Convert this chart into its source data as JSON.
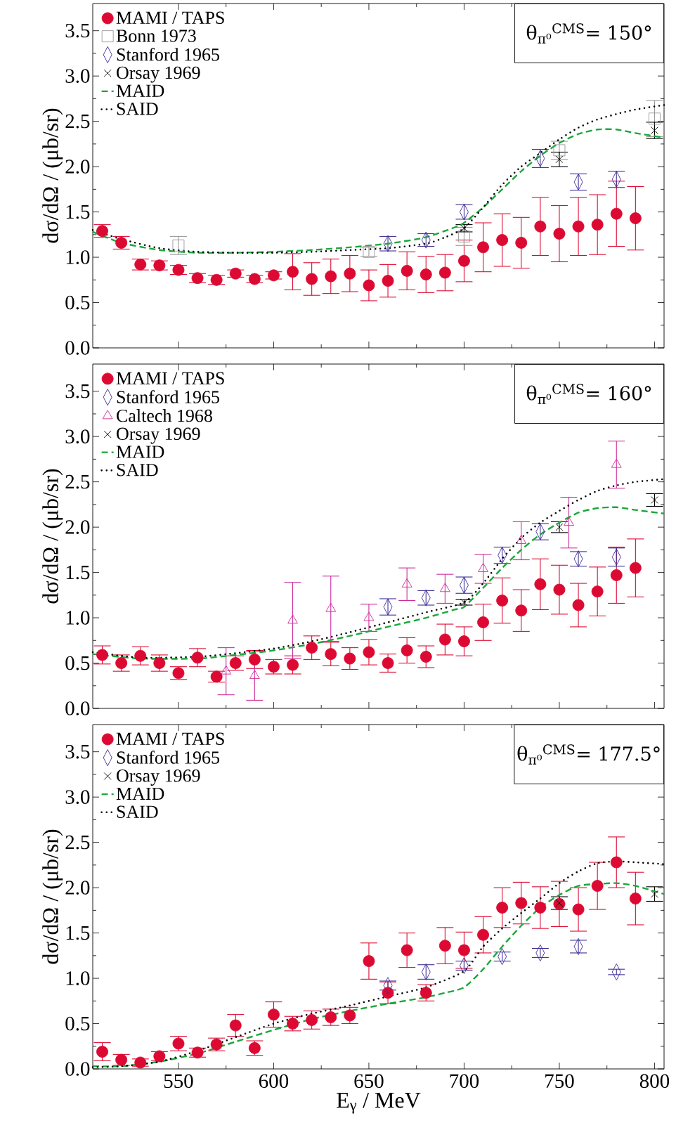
{
  "chart_data": [
    {
      "type": "scatter",
      "ylabel": "dσ/dΩ / (μb/sr)",
      "annotations": [
        "θ$_{π⁰}$$^{CMS}$= 150°"
      ],
      "xlim": [
        505,
        805
      ],
      "ylim": [
        0,
        3.8
      ],
      "xticks": [
        550,
        600,
        650,
        700,
        750,
        800
      ],
      "yticks": [
        {
          "value": 0,
          "label": "0.0"
        },
        {
          "value": 0.5,
          "label": "0.5"
        },
        {
          "value": 1,
          "label": "1.0"
        },
        {
          "value": 1.5,
          "label": "1.5"
        },
        {
          "value": 2,
          "label": "2.0"
        },
        {
          "value": 2.5,
          "label": "2.5"
        },
        {
          "value": 3,
          "label": "3.0"
        },
        {
          "value": 3.5,
          "label": "3.5"
        }
      ],
      "tick_labels": "y",
      "legend": "top left",
      "series": [
        {
          "name": "MAMI / TAPS",
          "color": "#dc0a32",
          "marker": "circle",
          "x": [
            510,
            520,
            530,
            540,
            550,
            560,
            570,
            580,
            590,
            600,
            610,
            620,
            630,
            640,
            650,
            660,
            670,
            680,
            690,
            700,
            710,
            720,
            730,
            740,
            750,
            760,
            770,
            780,
            790
          ],
          "values": [
            1.29,
            1.16,
            0.92,
            0.91,
            0.86,
            0.77,
            0.75,
            0.82,
            0.76,
            0.8,
            0.84,
            0.76,
            0.79,
            0.82,
            0.69,
            0.74,
            0.85,
            0.81,
            0.83,
            0.96,
            1.11,
            1.19,
            1.16,
            1.34,
            1.26,
            1.34,
            1.36,
            1.48,
            1.43
          ],
          "errors": [
            0.07,
            0.07,
            0.06,
            0.05,
            0.05,
            0.05,
            0.05,
            0.04,
            0.04,
            0.04,
            0.2,
            0.18,
            0.19,
            0.2,
            0.17,
            0.18,
            0.21,
            0.2,
            0.2,
            0.23,
            0.27,
            0.29,
            0.28,
            0.32,
            0.31,
            0.32,
            0.33,
            0.36,
            0.35
          ]
        },
        {
          "name": "Bonn 1973",
          "color": "#999999",
          "marker": "square",
          "x": [
            550,
            650,
            700,
            750,
            800
          ],
          "values": [
            1.13,
            1.06,
            1.23,
            2.18,
            2.53
          ],
          "errors": [
            0.1,
            0.05,
            0.1,
            0.1,
            0.2
          ]
        },
        {
          "name": "Stanford 1965",
          "color": "#3c2d96",
          "marker": "diamond",
          "x": [
            660,
            680,
            700,
            740,
            760,
            780
          ],
          "values": [
            1.15,
            1.19,
            1.5,
            2.09,
            1.83,
            1.86
          ],
          "errors": [
            0.08,
            0.07,
            0.08,
            0.1,
            0.09,
            0.09
          ]
        },
        {
          "name": "Orsay 1969",
          "color": "#000000",
          "marker": "cross",
          "x": [
            700,
            750,
            800
          ],
          "values": [
            1.32,
            2.08,
            2.4
          ],
          "errors": [
            0.04,
            0.08,
            0.09
          ]
        },
        {
          "name": "MAID",
          "type": "line",
          "color": "#1aa83a",
          "marker": "none",
          "line_style": "dashed",
          "x": [
            505,
            520,
            540,
            560,
            580,
            600,
            620,
            640,
            660,
            680,
            695,
            700,
            710,
            720,
            730,
            740,
            750,
            760,
            770,
            780,
            790,
            805
          ],
          "values": [
            1.28,
            1.16,
            1.08,
            1.05,
            1.05,
            1.06,
            1.08,
            1.11,
            1.15,
            1.22,
            1.33,
            1.38,
            1.55,
            1.75,
            1.95,
            2.12,
            2.26,
            2.36,
            2.41,
            2.41,
            2.37,
            2.32
          ]
        },
        {
          "name": "SAID",
          "type": "line",
          "color": "#000000",
          "marker": "none",
          "line_style": "dotted",
          "x": [
            505,
            520,
            540,
            560,
            580,
            600,
            620,
            640,
            660,
            680,
            690,
            700,
            710,
            720,
            730,
            740,
            750,
            760,
            770,
            780,
            790,
            805
          ],
          "values": [
            1.3,
            1.2,
            1.1,
            1.06,
            1.05,
            1.05,
            1.06,
            1.08,
            1.1,
            1.15,
            1.22,
            1.32,
            1.55,
            1.8,
            2.0,
            2.15,
            2.3,
            2.43,
            2.52,
            2.58,
            2.63,
            2.68
          ]
        }
      ]
    },
    {
      "type": "scatter",
      "ylabel": "dσ/dΩ / (μb/sr)",
      "annotations": [
        "θ$_{π⁰}$$^{CMS}$= 160°"
      ],
      "xlim": [
        505,
        805
      ],
      "ylim": [
        0,
        3.8
      ],
      "xticks": [
        550,
        600,
        650,
        700,
        750,
        800
      ],
      "yticks": [
        {
          "value": 0,
          "label": "0.0"
        },
        {
          "value": 0.5,
          "label": "0.5"
        },
        {
          "value": 1,
          "label": "1.0"
        },
        {
          "value": 1.5,
          "label": "1.5"
        },
        {
          "value": 2,
          "label": "2.0"
        },
        {
          "value": 2.5,
          "label": "2.5"
        },
        {
          "value": 3,
          "label": "3.0"
        },
        {
          "value": 3.5,
          "label": "3.5"
        }
      ],
      "tick_labels": "y",
      "legend": "top left",
      "series": [
        {
          "name": "MAMI / TAPS",
          "color": "#dc0a32",
          "marker": "circle",
          "x": [
            510,
            520,
            530,
            540,
            550,
            560,
            570,
            580,
            590,
            600,
            610,
            620,
            630,
            640,
            650,
            660,
            670,
            680,
            690,
            700,
            710,
            720,
            730,
            740,
            750,
            760,
            770,
            780,
            790
          ],
          "values": [
            0.59,
            0.5,
            0.58,
            0.5,
            0.39,
            0.56,
            0.35,
            0.5,
            0.54,
            0.46,
            0.48,
            0.67,
            0.6,
            0.55,
            0.62,
            0.5,
            0.64,
            0.57,
            0.76,
            0.74,
            0.95,
            1.19,
            1.08,
            1.37,
            1.31,
            1.14,
            1.29,
            1.47,
            1.55
          ],
          "errors": [
            0.1,
            0.09,
            0.1,
            0.09,
            0.07,
            0.1,
            0.06,
            0.08,
            0.1,
            0.08,
            0.1,
            0.13,
            0.13,
            0.12,
            0.14,
            0.1,
            0.14,
            0.12,
            0.17,
            0.16,
            0.2,
            0.25,
            0.23,
            0.28,
            0.27,
            0.24,
            0.27,
            0.31,
            0.32
          ]
        },
        {
          "name": "Stanford 1965",
          "color": "#3c2d96",
          "marker": "diamond",
          "x": [
            660,
            680,
            700,
            720,
            740,
            760,
            780
          ],
          "values": [
            1.12,
            1.22,
            1.36,
            1.69,
            1.95,
            1.65,
            1.67
          ],
          "errors": [
            0.09,
            0.08,
            0.09,
            0.09,
            0.09,
            0.08,
            0.1
          ]
        },
        {
          "name": "Caltech 1968",
          "color": "#cc2b9a",
          "marker": "triangle",
          "x": [
            575,
            590,
            610,
            630,
            650,
            670,
            690,
            710,
            730,
            755,
            780
          ],
          "values": [
            0.41,
            0.36,
            0.97,
            1.1,
            1.0,
            1.37,
            1.32,
            1.54,
            1.85,
            2.05,
            2.69
          ],
          "errors": [
            0.26,
            0.27,
            0.42,
            0.36,
            0.15,
            0.18,
            0.16,
            0.16,
            0.21,
            0.28,
            0.26
          ]
        },
        {
          "name": "Orsay 1969",
          "color": "#000000",
          "marker": "cross",
          "x": [
            700,
            750,
            800
          ],
          "values": [
            1.17,
            2.0,
            2.3
          ],
          "errors": [
            0.03,
            0.06,
            0.07
          ]
        },
        {
          "name": "MAID",
          "type": "line",
          "color": "#1aa83a",
          "marker": "none",
          "line_style": "dashed",
          "x": [
            505,
            530,
            560,
            580,
            600,
            620,
            640,
            660,
            680,
            695,
            700,
            710,
            720,
            730,
            740,
            750,
            760,
            770,
            780,
            790,
            805
          ],
          "values": [
            0.6,
            0.55,
            0.55,
            0.59,
            0.64,
            0.71,
            0.8,
            0.9,
            1.0,
            1.09,
            1.12,
            1.33,
            1.55,
            1.75,
            1.92,
            2.05,
            2.16,
            2.21,
            2.22,
            2.19,
            2.15
          ]
        },
        {
          "name": "SAID",
          "type": "line",
          "color": "#000000",
          "marker": "none",
          "line_style": "dotted",
          "x": [
            505,
            530,
            560,
            580,
            600,
            620,
            640,
            660,
            680,
            700,
            710,
            720,
            730,
            740,
            750,
            760,
            770,
            780,
            790,
            805
          ],
          "values": [
            0.62,
            0.56,
            0.57,
            0.61,
            0.66,
            0.74,
            0.84,
            0.95,
            1.06,
            1.17,
            1.38,
            1.65,
            1.88,
            2.05,
            2.18,
            2.3,
            2.4,
            2.46,
            2.5,
            2.53
          ]
        }
      ]
    },
    {
      "type": "scatter",
      "xlabel": "E$_{γ}$ / MeV",
      "ylabel": "dσ/dΩ / (μb/sr)",
      "annotations": [
        "θ$_{π⁰}$$^{CMS}$= 177.5°"
      ],
      "xlim": [
        505,
        805
      ],
      "ylim": [
        0,
        3.8
      ],
      "xticks": [
        550,
        600,
        650,
        700,
        750,
        800
      ],
      "yticks": [
        {
          "value": 0,
          "label": "0.0"
        },
        {
          "value": 0.5,
          "label": "0.5"
        },
        {
          "value": 1,
          "label": "1.0"
        },
        {
          "value": 1.5,
          "label": "1.5"
        },
        {
          "value": 2,
          "label": "2.0"
        },
        {
          "value": 2.5,
          "label": "2.5"
        },
        {
          "value": 3,
          "label": "3.0"
        },
        {
          "value": 3.5,
          "label": "3.5"
        }
      ],
      "legend": "top left",
      "series": [
        {
          "name": "MAMI / TAPS",
          "color": "#dc0a32",
          "marker": "circle",
          "x": [
            510,
            520,
            530,
            540,
            550,
            560,
            570,
            580,
            590,
            600,
            610,
            620,
            630,
            640,
            650,
            660,
            670,
            680,
            690,
            700,
            710,
            720,
            730,
            740,
            750,
            760,
            770,
            780,
            790
          ],
          "values": [
            0.19,
            0.1,
            0.07,
            0.14,
            0.28,
            0.18,
            0.27,
            0.48,
            0.23,
            0.6,
            0.5,
            0.54,
            0.57,
            0.59,
            1.19,
            0.84,
            1.31,
            0.84,
            1.36,
            1.31,
            1.48,
            1.78,
            1.83,
            1.78,
            1.82,
            1.76,
            2.02,
            2.28,
            1.88
          ],
          "errors": [
            0.1,
            0.06,
            0.04,
            0.05,
            0.08,
            0.05,
            0.07,
            0.12,
            0.08,
            0.14,
            0.08,
            0.1,
            0.09,
            0.09,
            0.2,
            0.12,
            0.19,
            0.09,
            0.2,
            0.2,
            0.2,
            0.22,
            0.23,
            0.23,
            0.25,
            0.24,
            0.26,
            0.28,
            0.29
          ]
        },
        {
          "name": "Stanford 1965",
          "color": "#3c2d96",
          "marker": "diamond",
          "x": [
            660,
            680,
            700,
            720,
            740,
            760,
            780
          ],
          "values": [
            0.92,
            1.07,
            1.14,
            1.24,
            1.28,
            1.35,
            1.07
          ],
          "errors": [
            0.05,
            0.08,
            0.05,
            0.05,
            0.05,
            0.07,
            0.03
          ]
        },
        {
          "name": "Orsay 1969",
          "color": "#000000",
          "marker": "cross",
          "x": [
            750,
            800
          ],
          "values": [
            1.83,
            1.93
          ],
          "errors": [
            0.07,
            0.08
          ]
        },
        {
          "name": "MAID",
          "type": "line",
          "color": "#1aa83a",
          "marker": "none",
          "line_style": "dashed",
          "x": [
            505,
            520,
            540,
            560,
            580,
            600,
            620,
            640,
            660,
            680,
            690,
            700,
            710,
            720,
            730,
            740,
            750,
            760,
            770,
            780,
            790,
            805
          ],
          "values": [
            0.03,
            0.03,
            0.08,
            0.17,
            0.3,
            0.43,
            0.55,
            0.64,
            0.72,
            0.79,
            0.84,
            0.9,
            1.1,
            1.35,
            1.58,
            1.78,
            1.92,
            2.02,
            2.04,
            2.05,
            2.02,
            1.93
          ]
        },
        {
          "name": "SAID",
          "type": "line",
          "color": "#000000",
          "marker": "none",
          "line_style": "dotted",
          "x": [
            505,
            520,
            540,
            560,
            580,
            600,
            620,
            640,
            660,
            680,
            700,
            710,
            720,
            730,
            740,
            750,
            760,
            770,
            780,
            790,
            805
          ],
          "values": [
            0.02,
            0.03,
            0.08,
            0.2,
            0.35,
            0.5,
            0.61,
            0.7,
            0.8,
            0.9,
            1.08,
            1.35,
            1.55,
            1.72,
            1.88,
            2.05,
            2.18,
            2.27,
            2.29,
            2.28,
            2.26
          ]
        }
      ]
    }
  ]
}
